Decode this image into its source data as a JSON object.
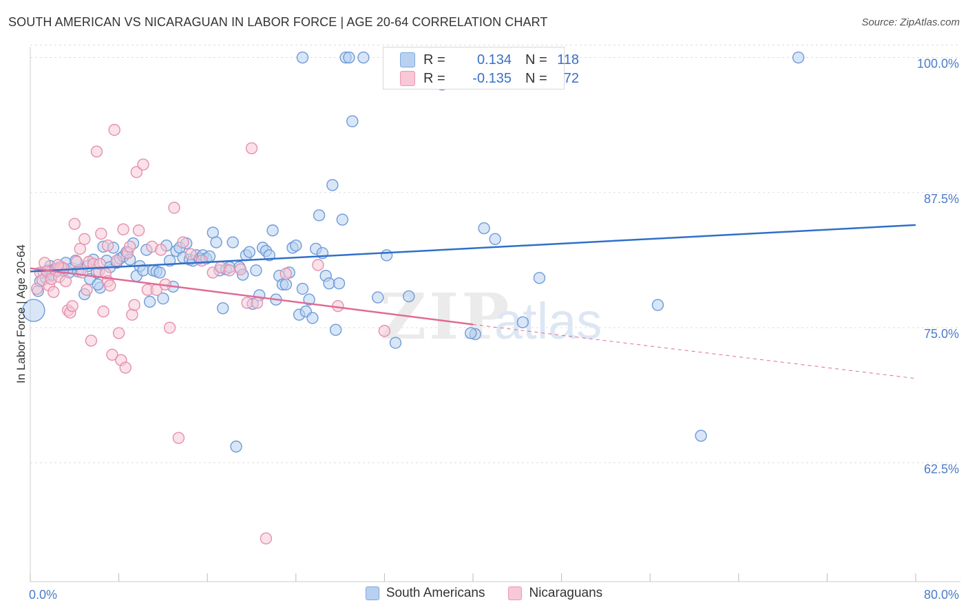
{
  "title": "SOUTH AMERICAN VS NICARAGUAN IN LABOR FORCE | AGE 20-64 CORRELATION CHART",
  "source": "Source: ZipAtlas.com",
  "watermark": {
    "zip": "ZIP",
    "atlas": "atlas"
  },
  "legend_box": {
    "row1": {
      "r_label": "R =",
      "r_value": "0.134",
      "n_label": "N =",
      "n_value": "118"
    },
    "row2": {
      "r_label": "R =",
      "r_value": "-0.135",
      "n_label": "N =",
      "n_value": "72"
    }
  },
  "legend": {
    "series1": "South Americans",
    "series2": "Nicaraguans"
  },
  "colors": {
    "blue_fill": "#b8d1f0",
    "blue_stroke": "#6e9ad8",
    "blue_line": "#2f6fc8",
    "pink_fill": "#f8c8d6",
    "pink_stroke": "#e390ad",
    "pink_line": "#e06a95",
    "tick": "#4a7bc8",
    "grid": "#dddddd"
  },
  "chart_data": {
    "type": "scatter",
    "title": "SOUTH AMERICAN VS NICARAGUAN IN LABOR FORCE | AGE 20-64 CORRELATION CHART",
    "xlabel": "",
    "ylabel": "In Labor Force | Age 20-64",
    "xlim": [
      0,
      80
    ],
    "ylim": [
      51.5,
      101.5
    ],
    "x_tick_labels": [
      "0.0%",
      "80.0%"
    ],
    "y_ticks": [
      62.5,
      75.0,
      87.5,
      100.0
    ],
    "y_tick_labels": [
      "62.5%",
      "75.0%",
      "87.5%",
      "100.0%"
    ],
    "grid": true,
    "legend_position": "bottom-center",
    "series": [
      {
        "name": "South Americans",
        "r": 0.134,
        "n": 118,
        "trend": {
          "x": [
            0,
            80
          ],
          "y": [
            80.2,
            84.5
          ]
        },
        "points": [
          [
            0.3,
            76.6
          ],
          [
            0.7,
            78.4
          ],
          [
            0.9,
            79.3
          ],
          [
            1.2,
            80.1
          ],
          [
            1.4,
            79.6
          ],
          [
            1.6,
            80.3
          ],
          [
            1.8,
            80.7
          ],
          [
            2.0,
            79.9
          ],
          [
            2.2,
            80.4
          ],
          [
            2.4,
            80.2
          ],
          [
            2.7,
            80.6
          ],
          [
            3.0,
            80.3
          ],
          [
            3.2,
            81.0
          ],
          [
            3.5,
            80.1
          ],
          [
            3.8,
            80.5
          ],
          [
            4.1,
            81.2
          ],
          [
            4.3,
            80.2
          ],
          [
            4.6,
            80.4
          ],
          [
            4.9,
            78.1
          ],
          [
            5.2,
            80.7
          ],
          [
            5.4,
            79.5
          ],
          [
            5.7,
            81.3
          ],
          [
            6.0,
            80.1
          ],
          [
            6.3,
            78.7
          ],
          [
            6.6,
            82.5
          ],
          [
            6.9,
            81.2
          ],
          [
            7.2,
            80.6
          ],
          [
            7.5,
            82.4
          ],
          [
            7.8,
            81.0
          ],
          [
            8.1,
            81.4
          ],
          [
            8.4,
            81.6
          ],
          [
            8.7,
            82.0
          ],
          [
            9.0,
            81.3
          ],
          [
            9.3,
            82.8
          ],
          [
            9.6,
            79.8
          ],
          [
            9.9,
            80.7
          ],
          [
            10.2,
            80.3
          ],
          [
            10.5,
            82.2
          ],
          [
            10.8,
            77.4
          ],
          [
            11.1,
            80.3
          ],
          [
            11.4,
            80.2
          ],
          [
            11.7,
            80.1
          ],
          [
            12.0,
            77.7
          ],
          [
            12.3,
            82.6
          ],
          [
            12.6,
            81.2
          ],
          [
            12.9,
            78.8
          ],
          [
            13.2,
            82.1
          ],
          [
            13.5,
            82.4
          ],
          [
            13.8,
            81.5
          ],
          [
            14.1,
            82.8
          ],
          [
            14.4,
            81.3
          ],
          [
            14.7,
            81.2
          ],
          [
            15.0,
            81.7
          ],
          [
            15.3,
            81.4
          ],
          [
            15.6,
            81.7
          ],
          [
            15.9,
            81.4
          ],
          [
            16.2,
            81.6
          ],
          [
            16.5,
            83.8
          ],
          [
            16.8,
            82.9
          ],
          [
            17.1,
            80.3
          ],
          [
            17.4,
            76.8
          ],
          [
            17.7,
            80.4
          ],
          [
            18.0,
            80.6
          ],
          [
            18.3,
            82.9
          ],
          [
            18.6,
            64.0
          ],
          [
            18.9,
            80.6
          ],
          [
            19.2,
            79.9
          ],
          [
            19.5,
            81.7
          ],
          [
            19.8,
            82.0
          ],
          [
            20.1,
            77.2
          ],
          [
            20.4,
            80.3
          ],
          [
            20.7,
            78.0
          ],
          [
            21.0,
            82.4
          ],
          [
            21.3,
            82.1
          ],
          [
            21.6,
            81.7
          ],
          [
            21.9,
            84.0
          ],
          [
            22.2,
            77.6
          ],
          [
            22.5,
            79.8
          ],
          [
            22.8,
            79.0
          ],
          [
            23.1,
            79.0
          ],
          [
            23.4,
            80.1
          ],
          [
            23.7,
            82.4
          ],
          [
            24.0,
            82.6
          ],
          [
            24.3,
            76.2
          ],
          [
            24.6,
            78.6
          ],
          [
            24.9,
            76.5
          ],
          [
            25.2,
            77.6
          ],
          [
            25.5,
            75.9
          ],
          [
            25.8,
            82.3
          ],
          [
            26.1,
            85.4
          ],
          [
            26.4,
            81.9
          ],
          [
            26.7,
            79.8
          ],
          [
            27.0,
            79.1
          ],
          [
            27.3,
            88.2
          ],
          [
            27.6,
            74.8
          ],
          [
            27.9,
            79.1
          ],
          [
            28.2,
            85.0
          ],
          [
            28.5,
            100.0
          ],
          [
            28.8,
            100.0
          ],
          [
            29.1,
            94.1
          ],
          [
            31.4,
            77.8
          ],
          [
            32.2,
            81.7
          ],
          [
            33.0,
            73.6
          ],
          [
            34.2,
            77.9
          ],
          [
            40.2,
            74.4
          ],
          [
            41.0,
            84.2
          ],
          [
            42.0,
            83.2
          ],
          [
            44.5,
            75.5
          ],
          [
            46.0,
            79.6
          ],
          [
            56.7,
            77.1
          ],
          [
            60.6,
            65.0
          ],
          [
            69.4,
            100.0
          ],
          [
            24.6,
            100.0
          ],
          [
            30.1,
            100.0
          ],
          [
            37.2,
            97.5
          ],
          [
            39.8,
            74.5
          ],
          [
            2.8,
            80.5
          ],
          [
            6.1,
            79.0
          ]
        ]
      },
      {
        "name": "Nicaraguans",
        "r": -0.135,
        "n": 72,
        "trend_solid": {
          "x": [
            0,
            40
          ],
          "y": [
            80.5,
            75.3
          ]
        },
        "trend_dashed": {
          "x": [
            40,
            80
          ],
          "y": [
            75.3,
            70.3
          ]
        },
        "points": [
          [
            0.6,
            78.6
          ],
          [
            0.9,
            80.1
          ],
          [
            1.1,
            79.4
          ],
          [
            1.3,
            81.0
          ],
          [
            1.5,
            80.2
          ],
          [
            1.7,
            78.9
          ],
          [
            1.9,
            79.5
          ],
          [
            2.1,
            78.3
          ],
          [
            2.3,
            80.3
          ],
          [
            2.6,
            79.7
          ],
          [
            2.8,
            80.6
          ],
          [
            3.0,
            80.5
          ],
          [
            3.2,
            79.3
          ],
          [
            3.4,
            76.6
          ],
          [
            3.6,
            76.4
          ],
          [
            3.8,
            77.0
          ],
          [
            4.0,
            84.6
          ],
          [
            4.2,
            81.1
          ],
          [
            4.5,
            82.3
          ],
          [
            4.7,
            80.1
          ],
          [
            4.9,
            83.2
          ],
          [
            5.1,
            78.5
          ],
          [
            5.3,
            81.1
          ],
          [
            5.5,
            73.8
          ],
          [
            5.7,
            80.9
          ],
          [
            6.0,
            91.3
          ],
          [
            6.2,
            80.2
          ],
          [
            6.4,
            83.7
          ],
          [
            6.6,
            76.5
          ],
          [
            6.8,
            80.0
          ],
          [
            7.0,
            79.3
          ],
          [
            7.2,
            78.9
          ],
          [
            7.4,
            72.5
          ],
          [
            7.6,
            93.3
          ],
          [
            7.8,
            81.2
          ],
          [
            8.0,
            74.5
          ],
          [
            8.2,
            72.0
          ],
          [
            8.4,
            84.1
          ],
          [
            8.6,
            71.3
          ],
          [
            8.8,
            81.9
          ],
          [
            9.0,
            82.5
          ],
          [
            9.2,
            76.2
          ],
          [
            9.4,
            77.1
          ],
          [
            9.6,
            89.4
          ],
          [
            9.8,
            84.0
          ],
          [
            10.2,
            90.1
          ],
          [
            10.6,
            78.5
          ],
          [
            11.0,
            82.5
          ],
          [
            11.4,
            78.5
          ],
          [
            11.8,
            82.2
          ],
          [
            12.2,
            79.0
          ],
          [
            12.6,
            75.0
          ],
          [
            13.0,
            86.1
          ],
          [
            13.4,
            64.8
          ],
          [
            13.8,
            82.9
          ],
          [
            14.5,
            81.8
          ],
          [
            15.5,
            81.2
          ],
          [
            16.5,
            80.1
          ],
          [
            17.2,
            80.6
          ],
          [
            18.0,
            80.3
          ],
          [
            19.0,
            80.4
          ],
          [
            19.6,
            77.3
          ],
          [
            20.0,
            91.6
          ],
          [
            20.5,
            77.3
          ],
          [
            21.3,
            55.5
          ],
          [
            23.1,
            80.0
          ],
          [
            26.0,
            80.8
          ],
          [
            27.8,
            77.0
          ],
          [
            32.0,
            74.7
          ],
          [
            6.3,
            80.9
          ],
          [
            2.5,
            80.8
          ],
          [
            7.0,
            82.6
          ]
        ]
      }
    ]
  }
}
